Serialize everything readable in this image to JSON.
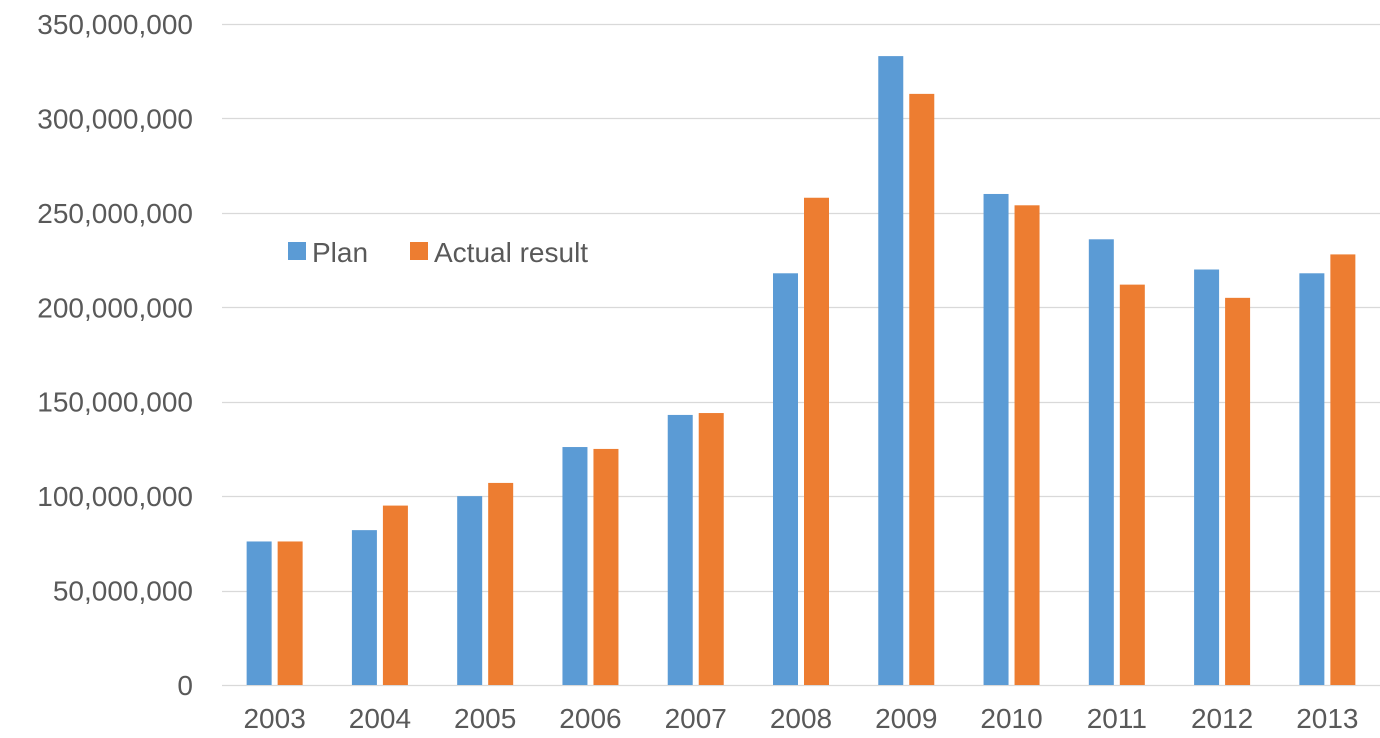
{
  "chart_data": {
    "type": "bar",
    "title": "",
    "xlabel": "",
    "ylabel": "",
    "categories": [
      "2003",
      "2004",
      "2005",
      "2006",
      "2007",
      "2008",
      "2009",
      "2010",
      "2011",
      "2012",
      "2013"
    ],
    "series": [
      {
        "name": "Plan",
        "color": "#5B9BD5",
        "values": [
          76000000,
          82000000,
          100000000,
          126000000,
          143000000,
          218000000,
          333000000,
          260000000,
          236000000,
          220000000,
          218000000
        ]
      },
      {
        "name": "Actual result",
        "color": "#ED7D31",
        "values": [
          76000000,
          95000000,
          107000000,
          125000000,
          144000000,
          258000000,
          313000000,
          254000000,
          212000000,
          205000000,
          228000000
        ]
      }
    ],
    "ylim": [
      0,
      350000000
    ],
    "yticks": [
      0,
      50000000,
      100000000,
      150000000,
      200000000,
      250000000,
      300000000,
      350000000
    ],
    "ytick_labels": [
      "0",
      "50,000,000",
      "100,000,000",
      "150,000,000",
      "200,000,000",
      "250,000,000",
      "300,000,000",
      "350,000,000"
    ],
    "grid": true,
    "gridline_color": "#D9D9D9",
    "legend_position": "upper-left inside plot"
  }
}
